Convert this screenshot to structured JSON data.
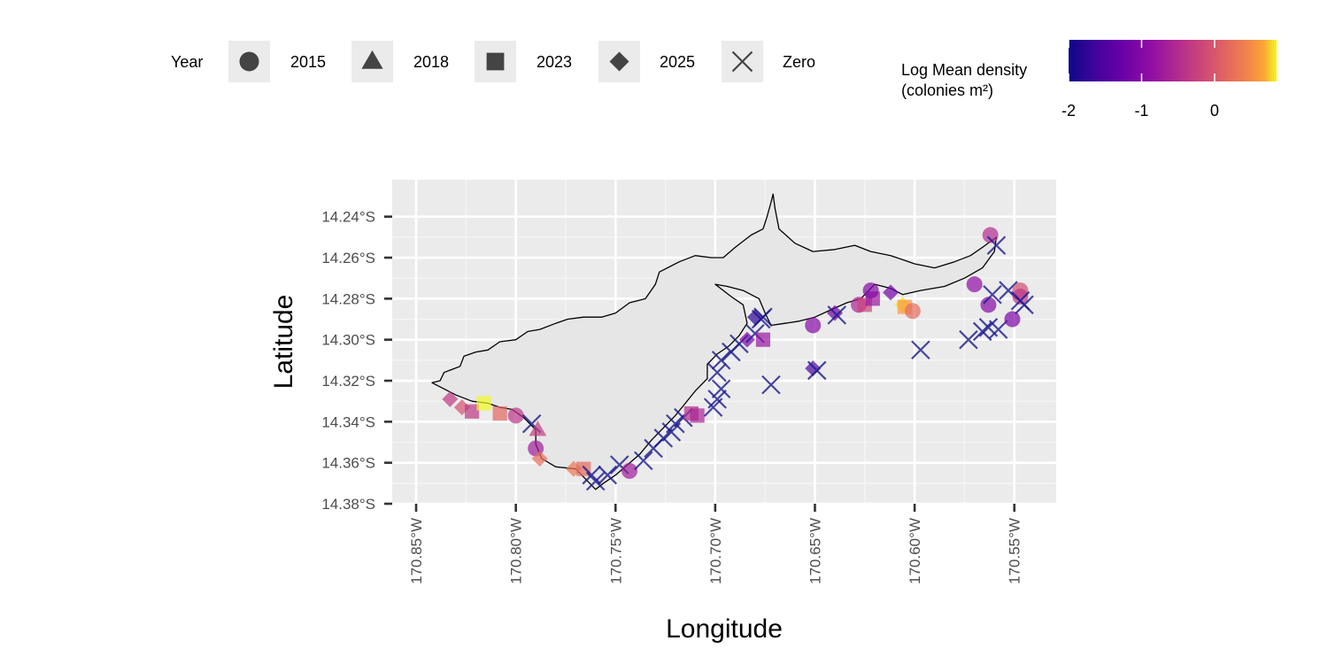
{
  "chart_data": {
    "type": "scatter",
    "title": "",
    "xlabel": "Longitude",
    "ylabel": "Latitude",
    "xlim": [
      -170.862,
      -170.529
    ],
    "ylim": [
      -14.38,
      -14.222
    ],
    "x_ticks": [
      {
        "value": -170.85,
        "label": "170.85°W"
      },
      {
        "value": -170.8,
        "label": "170.80°W"
      },
      {
        "value": -170.75,
        "label": "170.75°W"
      },
      {
        "value": -170.7,
        "label": "170.70°W"
      },
      {
        "value": -170.65,
        "label": "170.65°W"
      },
      {
        "value": -170.6,
        "label": "170.60°W"
      },
      {
        "value": -170.55,
        "label": "170.55°W"
      }
    ],
    "y_ticks": [
      {
        "value": -14.24,
        "label": "14.24°S"
      },
      {
        "value": -14.26,
        "label": "14.26°S"
      },
      {
        "value": -14.28,
        "label": "14.28°S"
      },
      {
        "value": -14.3,
        "label": "14.30°S"
      },
      {
        "value": -14.32,
        "label": "14.32°S"
      },
      {
        "value": -14.34,
        "label": "14.34°S"
      },
      {
        "value": -14.36,
        "label": "14.36°S"
      },
      {
        "value": -14.38,
        "label": "14.38°S"
      }
    ],
    "grid": true,
    "shape_legend": {
      "title": "Year",
      "placement": "top",
      "items": [
        {
          "label": "2015",
          "shape": "circle"
        },
        {
          "label": "2018",
          "shape": "triangle"
        },
        {
          "label": "2023",
          "shape": "square"
        },
        {
          "label": "2025",
          "shape": "diamond"
        },
        {
          "label": "Zero",
          "shape": "cross"
        }
      ]
    },
    "color_legend": {
      "title_line1": "Log Mean density",
      "title_line2": "(colonies m²)",
      "placement": "top-right",
      "min": -2,
      "max": 0.85,
      "ticks": [
        {
          "value": -2,
          "label": "-2"
        },
        {
          "value": -1,
          "label": "-1"
        },
        {
          "value": 0,
          "label": "0"
        }
      ],
      "colormap": "plasma",
      "zero_color": "#1a1a8c"
    },
    "coastline": [
      [
        -170.842,
        -14.321
      ],
      [
        -170.838,
        -14.32
      ],
      [
        -170.836,
        -14.316
      ],
      [
        -170.828,
        -14.313
      ],
      [
        -170.826,
        -14.308
      ],
      [
        -170.82,
        -14.306
      ],
      [
        -170.814,
        -14.305
      ],
      [
        -170.808,
        -14.301
      ],
      [
        -170.8,
        -14.3
      ],
      [
        -170.794,
        -14.296
      ],
      [
        -170.788,
        -14.295
      ],
      [
        -170.78,
        -14.292
      ],
      [
        -170.774,
        -14.29
      ],
      [
        -170.766,
        -14.289
      ],
      [
        -170.757,
        -14.289
      ],
      [
        -170.75,
        -14.287
      ],
      [
        -170.743,
        -14.282
      ],
      [
        -170.735,
        -14.28
      ],
      [
        -170.73,
        -14.273
      ],
      [
        -170.728,
        -14.267
      ],
      [
        -170.718,
        -14.262
      ],
      [
        -170.71,
        -14.259
      ],
      [
        -170.702,
        -14.26
      ],
      [
        -170.696,
        -14.26
      ],
      [
        -170.69,
        -14.255
      ],
      [
        -170.682,
        -14.249
      ],
      [
        -170.676,
        -14.246
      ],
      [
        -170.674,
        -14.24
      ],
      [
        -170.672,
        -14.233
      ],
      [
        -170.671,
        -14.229
      ],
      [
        -170.67,
        -14.236
      ],
      [
        -170.668,
        -14.246
      ],
      [
        -170.66,
        -14.253
      ],
      [
        -170.651,
        -14.257
      ],
      [
        -170.64,
        -14.256
      ],
      [
        -170.63,
        -14.254
      ],
      [
        -170.622,
        -14.257
      ],
      [
        -170.612,
        -14.259
      ],
      [
        -170.6,
        -14.263
      ],
      [
        -170.59,
        -14.265
      ],
      [
        -170.58,
        -14.262
      ],
      [
        -170.572,
        -14.259
      ],
      [
        -170.566,
        -14.255
      ],
      [
        -170.559,
        -14.25
      ],
      [
        -170.56,
        -14.257
      ],
      [
        -170.566,
        -14.265
      ],
      [
        -170.575,
        -14.27
      ],
      [
        -170.585,
        -14.274
      ],
      [
        -170.597,
        -14.276
      ],
      [
        -170.606,
        -14.278
      ],
      [
        -170.612,
        -14.275
      ],
      [
        -170.62,
        -14.273
      ],
      [
        -170.627,
        -14.28
      ],
      [
        -170.634,
        -14.282
      ],
      [
        -170.641,
        -14.285
      ],
      [
        -170.65,
        -14.289
      ],
      [
        -170.658,
        -14.291
      ],
      [
        -170.665,
        -14.292
      ],
      [
        -170.672,
        -14.293
      ],
      [
        -170.675,
        -14.287
      ],
      [
        -170.678,
        -14.28
      ],
      [
        -170.686,
        -14.276
      ],
      [
        -170.694,
        -14.274
      ],
      [
        -170.7,
        -14.273
      ],
      [
        -170.692,
        -14.279
      ],
      [
        -170.686,
        -14.283
      ],
      [
        -170.684,
        -14.292
      ],
      [
        -170.688,
        -14.298
      ],
      [
        -170.693,
        -14.303
      ],
      [
        -170.699,
        -14.307
      ],
      [
        -170.704,
        -14.312
      ],
      [
        -170.704,
        -14.319
      ],
      [
        -170.71,
        -14.325
      ],
      [
        -170.715,
        -14.331
      ],
      [
        -170.72,
        -14.337
      ],
      [
        -170.726,
        -14.343
      ],
      [
        -170.732,
        -14.349
      ],
      [
        -170.738,
        -14.356
      ],
      [
        -170.744,
        -14.361
      ],
      [
        -170.75,
        -14.366
      ],
      [
        -170.756,
        -14.37
      ],
      [
        -170.76,
        -14.373
      ],
      [
        -170.765,
        -14.368
      ],
      [
        -170.77,
        -14.363
      ],
      [
        -170.78,
        -14.362
      ],
      [
        -170.787,
        -14.358
      ],
      [
        -170.79,
        -14.351
      ],
      [
        -170.79,
        -14.344
      ],
      [
        -170.796,
        -14.338
      ],
      [
        -170.802,
        -14.334
      ],
      [
        -170.808,
        -14.333
      ],
      [
        -170.814,
        -14.331
      ],
      [
        -170.822,
        -14.33
      ],
      [
        -170.83,
        -14.327
      ],
      [
        -170.836,
        -14.324
      ],
      [
        -170.842,
        -14.321
      ]
    ],
    "points": [
      {
        "lon": -170.833,
        "lat": -14.329,
        "shape": "diamond",
        "value": -0.35
      },
      {
        "lon": -170.827,
        "lat": -14.333,
        "shape": "diamond",
        "value": -0.05
      },
      {
        "lon": -170.822,
        "lat": -14.335,
        "shape": "square",
        "value": -0.35
      },
      {
        "lon": -170.816,
        "lat": -14.331,
        "shape": "square",
        "value": 0.85
      },
      {
        "lon": -170.808,
        "lat": -14.336,
        "shape": "square",
        "value": 0.15
      },
      {
        "lon": -170.8,
        "lat": -14.337,
        "shape": "circle",
        "value": -0.4
      },
      {
        "lon": -170.792,
        "lat": -14.341,
        "shape": "cross",
        "value": null
      },
      {
        "lon": -170.789,
        "lat": -14.344,
        "shape": "triangle",
        "value": -0.3
      },
      {
        "lon": -170.79,
        "lat": -14.353,
        "shape": "circle",
        "value": -0.7
      },
      {
        "lon": -170.788,
        "lat": -14.358,
        "shape": "diamond",
        "value": 0.25
      },
      {
        "lon": -170.771,
        "lat": -14.363,
        "shape": "diamond",
        "value": 0.3
      },
      {
        "lon": -170.766,
        "lat": -14.363,
        "shape": "square",
        "value": 0.2
      },
      {
        "lon": -170.762,
        "lat": -14.366,
        "shape": "cross",
        "value": null
      },
      {
        "lon": -170.76,
        "lat": -14.369,
        "shape": "cross",
        "value": null
      },
      {
        "lon": -170.754,
        "lat": -14.366,
        "shape": "cross",
        "value": null
      },
      {
        "lon": -170.748,
        "lat": -14.361,
        "shape": "cross",
        "value": null
      },
      {
        "lon": -170.743,
        "lat": -14.364,
        "shape": "circle",
        "value": -0.7
      },
      {
        "lon": -170.736,
        "lat": -14.359,
        "shape": "cross",
        "value": null
      },
      {
        "lon": -170.731,
        "lat": -14.353,
        "shape": "cross",
        "value": null
      },
      {
        "lon": -170.726,
        "lat": -14.348,
        "shape": "cross",
        "value": null
      },
      {
        "lon": -170.722,
        "lat": -14.345,
        "shape": "cross",
        "value": null
      },
      {
        "lon": -170.72,
        "lat": -14.341,
        "shape": "cross",
        "value": null
      },
      {
        "lon": -170.716,
        "lat": -14.338,
        "shape": "cross",
        "value": null
      },
      {
        "lon": -170.712,
        "lat": -14.336,
        "shape": "square",
        "value": -0.5
      },
      {
        "lon": -170.709,
        "lat": -14.337,
        "shape": "square",
        "value": -0.6
      },
      {
        "lon": -170.701,
        "lat": -14.333,
        "shape": "cross",
        "value": null
      },
      {
        "lon": -170.699,
        "lat": -14.329,
        "shape": "cross",
        "value": null
      },
      {
        "lon": -170.697,
        "lat": -14.324,
        "shape": "cross",
        "value": null
      },
      {
        "lon": -170.699,
        "lat": -14.316,
        "shape": "cross",
        "value": null
      },
      {
        "lon": -170.697,
        "lat": -14.31,
        "shape": "cross",
        "value": null
      },
      {
        "lon": -170.692,
        "lat": -14.306,
        "shape": "cross",
        "value": null
      },
      {
        "lon": -170.688,
        "lat": -14.302,
        "shape": "cross",
        "value": null
      },
      {
        "lon": -170.684,
        "lat": -14.3,
        "shape": "diamond",
        "value": -1.1
      },
      {
        "lon": -170.68,
        "lat": -14.297,
        "shape": "cross",
        "value": null
      },
      {
        "lon": -170.676,
        "lat": -14.3,
        "shape": "square",
        "value": -0.8
      },
      {
        "lon": -170.677,
        "lat": -14.29,
        "shape": "cross",
        "value": null
      },
      {
        "lon": -170.68,
        "lat": -14.289,
        "shape": "diamond",
        "value": -1.8
      },
      {
        "lon": -170.676,
        "lat": -14.289,
        "shape": "cross",
        "value": null
      },
      {
        "lon": -170.672,
        "lat": -14.322,
        "shape": "cross",
        "value": null
      },
      {
        "lon": -170.651,
        "lat": -14.293,
        "shape": "circle",
        "value": -1.0
      },
      {
        "lon": -170.651,
        "lat": -14.314,
        "shape": "diamond",
        "value": -1.5
      },
      {
        "lon": -170.649,
        "lat": -14.315,
        "shape": "cross",
        "value": null
      },
      {
        "lon": -170.64,
        "lat": -14.287,
        "shape": "diamond",
        "value": -1.2
      },
      {
        "lon": -170.639,
        "lat": -14.288,
        "shape": "cross",
        "value": null
      },
      {
        "lon": -170.628,
        "lat": -14.283,
        "shape": "circle",
        "value": -0.6
      },
      {
        "lon": -170.625,
        "lat": -14.283,
        "shape": "square",
        "value": -0.2
      },
      {
        "lon": -170.621,
        "lat": -14.28,
        "shape": "square",
        "value": -0.8
      },
      {
        "lon": -170.622,
        "lat": -14.276,
        "shape": "circle",
        "value": -1.0
      },
      {
        "lon": -170.612,
        "lat": -14.277,
        "shape": "diamond",
        "value": -1.2
      },
      {
        "lon": -170.606,
        "lat": -14.283,
        "shape": "diamond",
        "value": 0.8
      },
      {
        "lon": -170.605,
        "lat": -14.284,
        "shape": "square",
        "value": 0.6
      },
      {
        "lon": -170.601,
        "lat": -14.286,
        "shape": "circle",
        "value": 0.2
      },
      {
        "lon": -170.597,
        "lat": -14.305,
        "shape": "cross",
        "value": null
      },
      {
        "lon": -170.573,
        "lat": -14.3,
        "shape": "cross",
        "value": null
      },
      {
        "lon": -170.57,
        "lat": -14.273,
        "shape": "circle",
        "value": -0.9
      },
      {
        "lon": -170.566,
        "lat": -14.296,
        "shape": "cross",
        "value": null
      },
      {
        "lon": -170.563,
        "lat": -14.294,
        "shape": "cross",
        "value": null
      },
      {
        "lon": -170.563,
        "lat": -14.283,
        "shape": "circle",
        "value": -1.0
      },
      {
        "lon": -170.562,
        "lat": -14.249,
        "shape": "circle",
        "value": -0.5
      },
      {
        "lon": -170.559,
        "lat": -14.254,
        "shape": "cross",
        "value": null
      },
      {
        "lon": -170.561,
        "lat": -14.278,
        "shape": "cross",
        "value": null
      },
      {
        "lon": -170.558,
        "lat": -14.295,
        "shape": "cross",
        "value": null
      },
      {
        "lon": -170.551,
        "lat": -14.29,
        "shape": "circle",
        "value": -1.1
      },
      {
        "lon": -170.553,
        "lat": -14.276,
        "shape": "cross",
        "value": null
      },
      {
        "lon": -170.547,
        "lat": -14.276,
        "shape": "circle",
        "value": -0.1
      },
      {
        "lon": -170.547,
        "lat": -14.279,
        "shape": "circle",
        "value": -0.4
      },
      {
        "lon": -170.547,
        "lat": -14.281,
        "shape": "cross",
        "value": null
      },
      {
        "lon": -170.545,
        "lat": -14.283,
        "shape": "cross",
        "value": null
      }
    ]
  }
}
